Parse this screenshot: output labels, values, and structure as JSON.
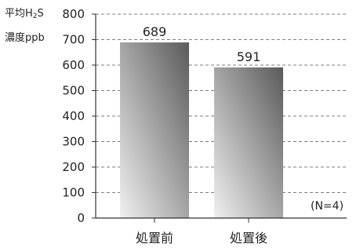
{
  "chart_data": {
    "type": "bar",
    "title": "",
    "ylabel_line1_prefix": "平均H",
    "ylabel_line1_sub": "2",
    "ylabel_line1_suffix": "S",
    "ylabel_line2": "濃度ppb",
    "categories": [
      "処置前",
      "処置後"
    ],
    "values": [
      689,
      591
    ],
    "data_labels": [
      "689",
      "591"
    ],
    "ylim": [
      0,
      800
    ],
    "yticks": [
      0,
      100,
      200,
      300,
      400,
      500,
      600,
      700,
      800
    ],
    "grid": "dashed horizontal",
    "legend": "none",
    "annotation": "(N=4)",
    "colors": {
      "bar_dark": "#5a5a5a",
      "bar_light": "#f0f0f0",
      "axis": "#333333",
      "grid": "#555555"
    }
  }
}
